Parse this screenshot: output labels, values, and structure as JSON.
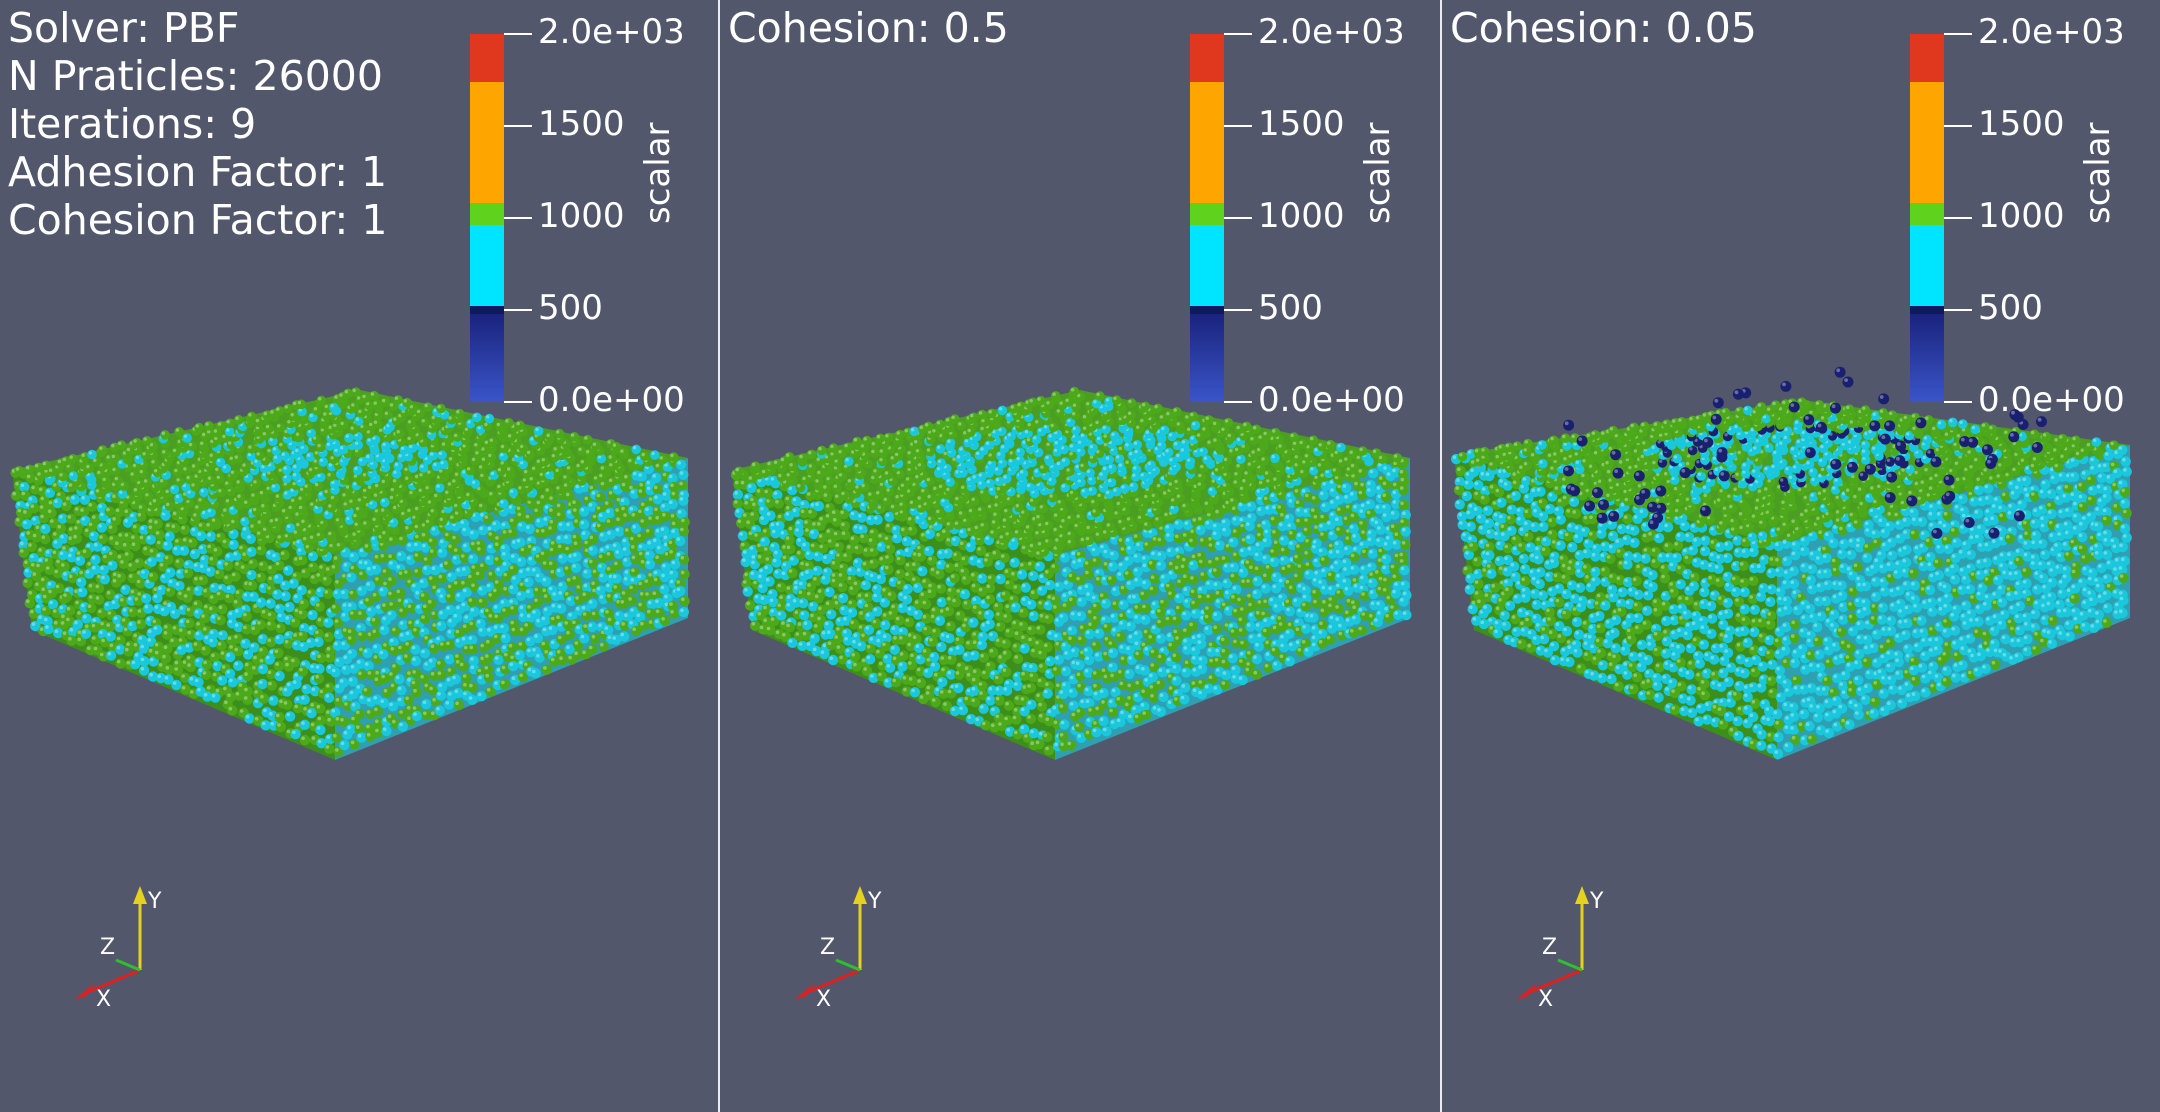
{
  "info": {
    "lines": [
      "Solver: PBF",
      "N Praticles: 26000",
      "Iterations: 9",
      "Adhesion Factor: 1",
      "Cohesion Factor: 1"
    ]
  },
  "panels": [
    {
      "title": "",
      "label_mode": "info",
      "surface": "dense",
      "splash": 0
    },
    {
      "title": "Cohesion: 0.5",
      "label_mode": "title",
      "surface": "ring",
      "splash": 0
    },
    {
      "title": "Cohesion: 0.05",
      "label_mode": "title",
      "surface": "ring_cyan",
      "splash": 1
    }
  ],
  "scalar_bar": {
    "title": "scalar",
    "ticks": [
      "2.0e+03",
      "1500",
      "1000",
      "500",
      "0.0e+00"
    ],
    "range": [
      0,
      2000
    ],
    "segments": [
      {
        "from": 0,
        "to": 480,
        "color": "#1a237e"
      },
      {
        "from": 480,
        "to": 520,
        "color": "#0d1a5e"
      },
      {
        "from": 520,
        "to": 960,
        "color": "#00e5ff"
      },
      {
        "from": 960,
        "to": 1080,
        "color": "#5fd21e"
      },
      {
        "from": 1080,
        "to": 1740,
        "color": "#ffa500"
      },
      {
        "from": 1740,
        "to": 2000,
        "color": "#e0381e"
      }
    ]
  },
  "axes": {
    "x": "X",
    "y": "Y",
    "z": "Z"
  },
  "colors": {
    "background": "#52576b",
    "particle_green": "#4caa1a",
    "particle_cyan": "#19c8dc",
    "particle_dark": "#1a2070",
    "separator": "#e9ebf0"
  }
}
